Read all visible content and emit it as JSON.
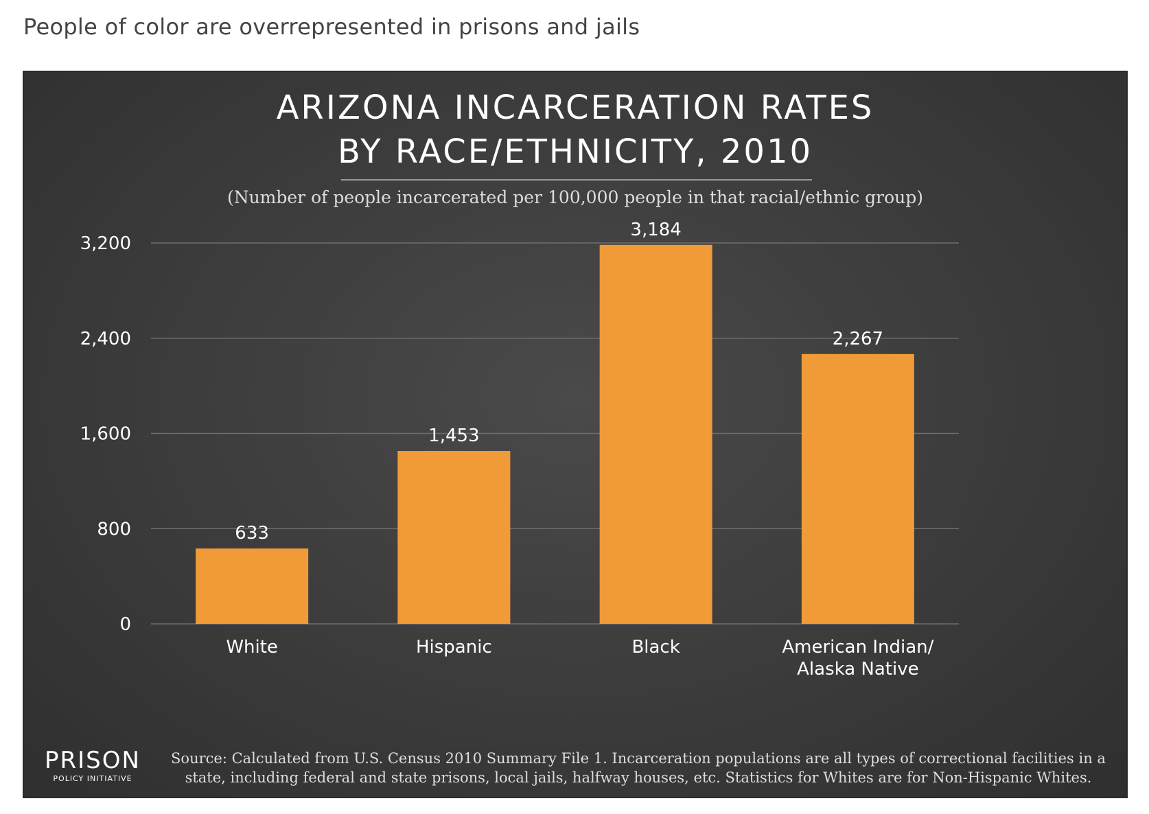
{
  "page": {
    "heading": "People of color are overrepresented in prisons and jails"
  },
  "chart_data": {
    "type": "bar",
    "title_lines": [
      "ARIZONA INCARCERATION RATES",
      "BY RACE/ETHNICITY, 2010"
    ],
    "subtitle": "(Number of people incarcerated per 100,000 people in that racial/ethnic group)",
    "categories": [
      [
        "White"
      ],
      [
        "Hispanic"
      ],
      [
        "Black"
      ],
      [
        "American Indian/",
        "Alaska Native"
      ]
    ],
    "values": [
      633,
      1453,
      3184,
      2267
    ],
    "value_labels": [
      "633",
      "1,453",
      "3,184",
      "2,267"
    ],
    "yticks": [
      0,
      800,
      1600,
      2400,
      3200
    ],
    "ytick_labels": [
      "0",
      "800",
      "1,600",
      "2,400",
      "3,200"
    ],
    "ylim": [
      0,
      3200
    ],
    "xlabel": "",
    "ylabel": "",
    "grid": true,
    "legend": "none",
    "colors": {
      "bar": "#f09a38",
      "grid": "#6e6e6e",
      "text": "#ffffff",
      "panel": "#3d3d3d"
    }
  },
  "footer": {
    "logo_word": "PRISON",
    "logo_sub": "POLICY INITIATIVE",
    "source": "Source: Calculated from U.S. Census 2010 Summary File 1. Incarceration populations are all types of correctional facilities in a state, including federal and state prisons, local jails, halfway houses, etc. Statistics for Whites are for Non-Hispanic Whites."
  }
}
